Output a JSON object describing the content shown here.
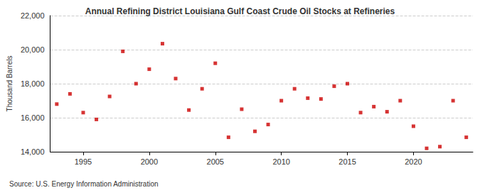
{
  "chart_data": {
    "type": "scatter",
    "title": "Annual Refining District Louisiana Gulf Coast Crude Oil Stocks at Refineries",
    "y_label": "Thousand Barrels",
    "source": "Source: U.S. Energy Information Administration",
    "x": [
      1993,
      1994,
      1995,
      1996,
      1997,
      1998,
      1999,
      2000,
      2001,
      2002,
      2003,
      2004,
      2005,
      2006,
      2007,
      2008,
      2009,
      2010,
      2011,
      2012,
      2013,
      2014,
      2015,
      2016,
      2017,
      2018,
      2019,
      2020,
      2021,
      2022,
      2023,
      2024
    ],
    "values": [
      16800,
      17400,
      16300,
      15900,
      17250,
      19900,
      18000,
      18850,
      20350,
      18300,
      16450,
      17700,
      19200,
      14850,
      16500,
      15200,
      15600,
      17000,
      17700,
      17150,
      17100,
      17850,
      18000,
      16300,
      16650,
      16350,
      17000,
      15500,
      14200,
      14300,
      17000,
      14850
    ],
    "color": "#cc0000",
    "marker": "square",
    "xlim": [
      1992.5,
      2024.5
    ],
    "xticks": [
      1995,
      2000,
      2005,
      2010,
      2015,
      2020
    ],
    "ylim": [
      14000,
      22000
    ],
    "yticks": [
      {
        "value": 14000,
        "label": "14,000"
      },
      {
        "value": 16000,
        "label": "16,000"
      },
      {
        "value": 18000,
        "label": "18,000"
      },
      {
        "value": 20000,
        "label": "20,000"
      },
      {
        "value": 22000,
        "label": "22,000"
      }
    ],
    "grid": true
  }
}
